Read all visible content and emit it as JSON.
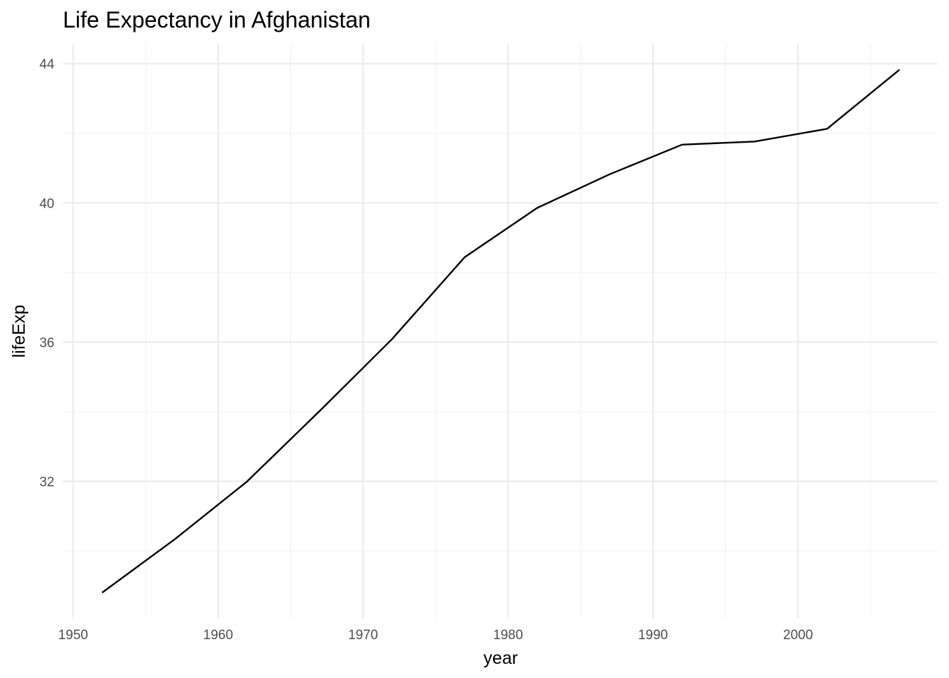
{
  "chart_data": {
    "type": "line",
    "title": "Life Expectancy in Afghanistan",
    "xlabel": "year",
    "ylabel": "lifeExp",
    "xlim": [
      1952,
      2007
    ],
    "ylim": [
      28.801,
      43.828
    ],
    "x_major_ticks": [
      1950,
      1960,
      1970,
      1980,
      1990,
      2000
    ],
    "x_minor_ticks": [
      1955,
      1965,
      1975,
      1985,
      1995,
      2005
    ],
    "y_major_ticks": [
      32,
      36,
      40,
      44
    ],
    "y_minor_ticks": [
      30,
      34,
      38,
      42
    ],
    "x_tick_labels": [
      "1950",
      "1960",
      "1970",
      "1980",
      "1990",
      "2000"
    ],
    "y_tick_labels": [
      "32",
      "36",
      "40",
      "44"
    ],
    "grid": true,
    "series": [
      {
        "name": "Afghanistan",
        "color": "#000000",
        "x": [
          1952,
          1957,
          1962,
          1967,
          1972,
          1977,
          1982,
          1987,
          1992,
          1997,
          2002,
          2007
        ],
        "values": [
          28.801,
          30.332,
          31.997,
          34.02,
          36.088,
          38.438,
          39.854,
          40.822,
          41.674,
          41.763,
          42.129,
          43.828
        ]
      }
    ]
  }
}
